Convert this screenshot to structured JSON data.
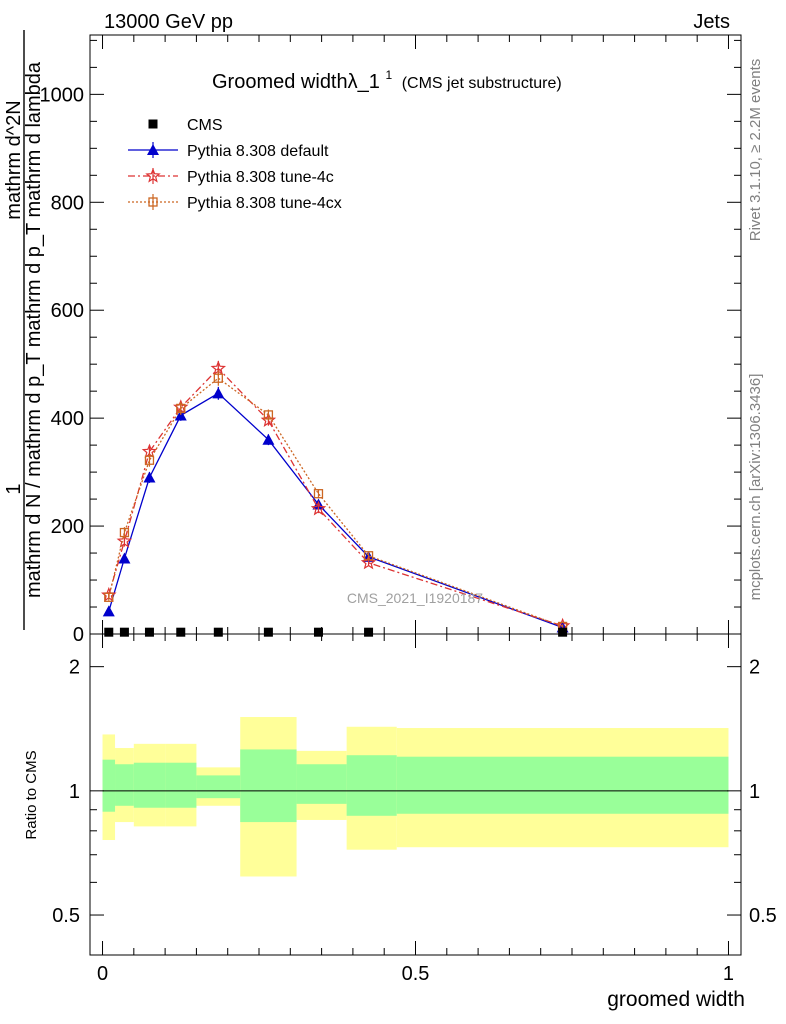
{
  "header": {
    "left": "13000 GeV pp",
    "right": "Jets"
  },
  "side_labels": {
    "rivet": "Rivet 3.1.10, ≥ 2.2M events",
    "mcplots": "mcplots.cern.ch [arXiv:1306.3436]"
  },
  "chart_data": {
    "type": "line",
    "title_main": "Groomed widthλ_1",
    "title_sup": "1",
    "title_note": "(CMS jet substructure)",
    "watermark": "CMS_2021_I1920187",
    "ylabel_numerator": "1",
    "ylabel_denominator": "mathrm d N / mathrm d p_T mathrm d p_T mathrm d lambda",
    "ylabel_main": "mathrm d^2N",
    "xlabel": "groomed width",
    "ratio_ylabel": "Ratio to CMS",
    "xlim": [
      -0.02,
      1.02
    ],
    "ylim": [
      0,
      1110
    ],
    "yticks": [
      0,
      200,
      400,
      600,
      800,
      1000
    ],
    "yticklabels": [
      "0",
      "200",
      "400",
      "600",
      "800",
      "1000"
    ],
    "xticks": [
      0,
      0.5,
      1
    ],
    "xticklabels": [
      "0",
      "0.5",
      "1"
    ],
    "ratio_ylim_log": [
      0.4,
      2.4
    ],
    "ratio_yticks": [
      0.5,
      1,
      2
    ],
    "ratio_yticklabels": [
      "0.5",
      "1",
      "2"
    ],
    "legend": [
      {
        "name": "CMS",
        "color": "#000000",
        "style": "square"
      },
      {
        "name": "Pythia 8.308 default",
        "color": "#0000cc",
        "style": "triangle"
      },
      {
        "name": "Pythia 8.308 tune-4c",
        "color": "#dd3333",
        "style": "star"
      },
      {
        "name": "Pythia 8.308 tune-4cx",
        "color": "#cc6622",
        "style": "opensquare"
      }
    ],
    "cms": {
      "x": [
        0.01,
        0.035,
        0.075,
        0.125,
        0.185,
        0.265,
        0.345,
        0.425,
        0.735
      ],
      "y": [
        1.5,
        1.5,
        1.5,
        1.5,
        1.5,
        1.5,
        1.5,
        1.5,
        1.5
      ]
    },
    "series": [
      {
        "name": "Pythia 8.308 default",
        "x": [
          0.01,
          0.035,
          0.075,
          0.125,
          0.185,
          0.265,
          0.345,
          0.425,
          0.735
        ],
        "y": [
          42,
          140,
          290,
          405,
          446,
          360,
          240,
          143,
          12
        ],
        "err": [
          5,
          8,
          10,
          10,
          12,
          10,
          8,
          6,
          3
        ]
      },
      {
        "name": "Pythia 8.308 tune-4c",
        "x": [
          0.01,
          0.035,
          0.075,
          0.125,
          0.185,
          0.265,
          0.345,
          0.425,
          0.735
        ],
        "y": [
          72,
          172,
          338,
          420,
          492,
          396,
          232,
          132,
          15
        ],
        "err": [
          6,
          10,
          12,
          12,
          14,
          10,
          8,
          6,
          3
        ]
      },
      {
        "name": "Pythia 8.308 tune-4cx",
        "x": [
          0.01,
          0.035,
          0.075,
          0.125,
          0.185,
          0.265,
          0.345,
          0.425,
          0.735
        ],
        "y": [
          68,
          188,
          322,
          418,
          474,
          406,
          260,
          145,
          14
        ],
        "err": [
          6,
          10,
          12,
          12,
          14,
          10,
          8,
          6,
          3
        ]
      }
    ],
    "ratio_bands": [
      {
        "x0": 0.0,
        "x1": 0.02,
        "y1lo": 0.89,
        "y1hi": 1.19,
        "y2lo": 0.76,
        "y2hi": 1.37
      },
      {
        "x0": 0.02,
        "x1": 0.05,
        "y1lo": 0.92,
        "y1hi": 1.16,
        "y2lo": 0.84,
        "y2hi": 1.27
      },
      {
        "x0": 0.05,
        "x1": 0.1,
        "y1lo": 0.91,
        "y1hi": 1.17,
        "y2lo": 0.82,
        "y2hi": 1.3
      },
      {
        "x0": 0.1,
        "x1": 0.15,
        "y1lo": 0.91,
        "y1hi": 1.17,
        "y2lo": 0.82,
        "y2hi": 1.3
      },
      {
        "x0": 0.15,
        "x1": 0.22,
        "y1lo": 0.96,
        "y1hi": 1.09,
        "y2lo": 0.92,
        "y2hi": 1.14
      },
      {
        "x0": 0.22,
        "x1": 0.31,
        "y1lo": 0.84,
        "y1hi": 1.26,
        "y2lo": 0.62,
        "y2hi": 1.51
      },
      {
        "x0": 0.31,
        "x1": 0.39,
        "y1lo": 0.93,
        "y1hi": 1.16,
        "y2lo": 0.85,
        "y2hi": 1.25
      },
      {
        "x0": 0.39,
        "x1": 0.47,
        "y1lo": 0.87,
        "y1hi": 1.22,
        "y2lo": 0.72,
        "y2hi": 1.43
      },
      {
        "x0": 0.47,
        "x1": 1.0,
        "y1lo": 0.88,
        "y1hi": 1.21,
        "y2lo": 0.73,
        "y2hi": 1.42
      }
    ]
  }
}
